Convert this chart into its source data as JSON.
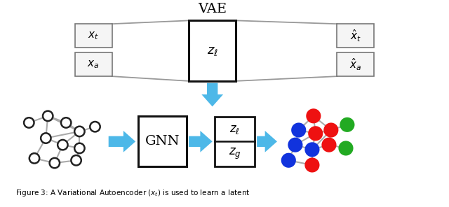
{
  "bg_color": "#ffffff",
  "arrow_color": "#4db8e8",
  "edge_color": "#aaaaaa",
  "node_color_white": "#ffffff",
  "node_color_red": "#ee1111",
  "node_color_blue": "#1133dd",
  "node_color_green": "#22aa22",
  "node_edge_color": "#111111",
  "box_edge_color": "#111111",
  "vae_label": "VAE",
  "gnn_label": "GNN",
  "z_l_label": "$z_\\ell$",
  "z_g_label": "$z_g$",
  "xt_label": "$x_t$",
  "xa_label": "$x_a$",
  "xhat_t_label": "$\\hat{x}_t$",
  "xhat_a_label": "$\\hat{x}_a$",
  "caption": "Figure 3: A Variational Autoencoder $(x_t)$ is used to learn a latent"
}
